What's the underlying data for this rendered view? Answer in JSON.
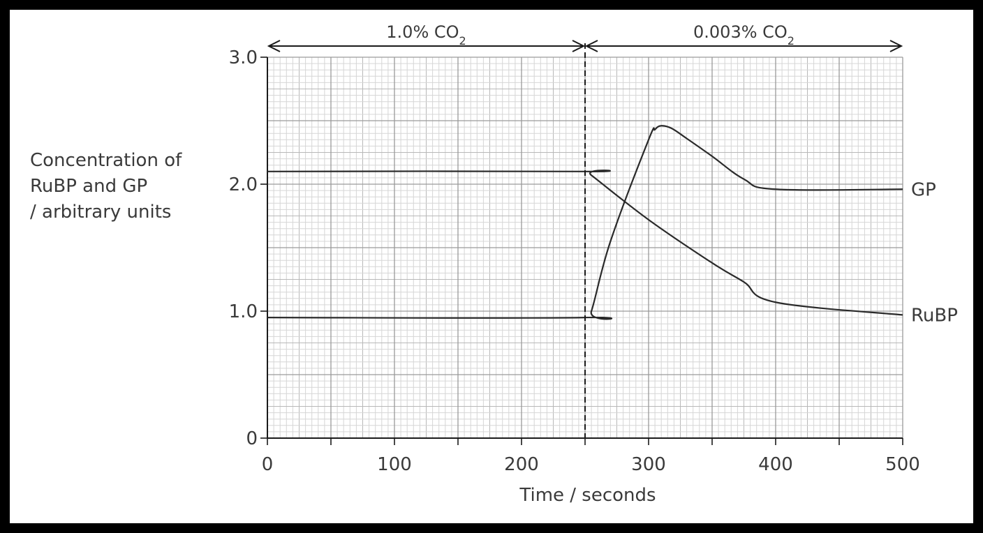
{
  "chart_data": {
    "type": "line",
    "xlabel": "Time / seconds",
    "ylabel_lines": [
      "Concentration of",
      "RuBP and GP",
      "/ arbitrary units"
    ],
    "xlim": [
      0,
      500
    ],
    "ylim": [
      0,
      3
    ],
    "xticks": [
      0,
      100,
      200,
      300,
      400,
      500
    ],
    "xtick_labels": [
      "0",
      "100",
      "200",
      "300",
      "400",
      "500"
    ],
    "yticks": [
      0,
      1,
      2,
      3
    ],
    "ytick_labels": [
      "0",
      "1.0",
      "2.0",
      "3.0"
    ],
    "grid": true,
    "series": [
      {
        "name": "RuBP",
        "x": [
          0,
          250,
          255,
          300,
          350,
          375,
          400,
          500
        ],
        "y": [
          2.1,
          2.1,
          2.07,
          1.72,
          1.38,
          1.23,
          1.07,
          0.97
        ]
      },
      {
        "name": "GP",
        "x": [
          0,
          250,
          255,
          270,
          300,
          305,
          310,
          318,
          330,
          350,
          375,
          400,
          500
        ],
        "y": [
          0.95,
          0.95,
          1.0,
          1.55,
          2.35,
          2.43,
          2.46,
          2.44,
          2.36,
          2.22,
          2.04,
          1.96,
          1.96
        ]
      }
    ],
    "series_end_labels": [
      "RuBP",
      "GP"
    ],
    "annotations": {
      "divider_x": 250,
      "periods": [
        {
          "label": "1.0% CO",
          "subscript": "2",
          "from": 0,
          "to": 250
        },
        {
          "label": "0.003% CO",
          "subscript": "2",
          "from": 250,
          "to": 500
        }
      ]
    }
  }
}
